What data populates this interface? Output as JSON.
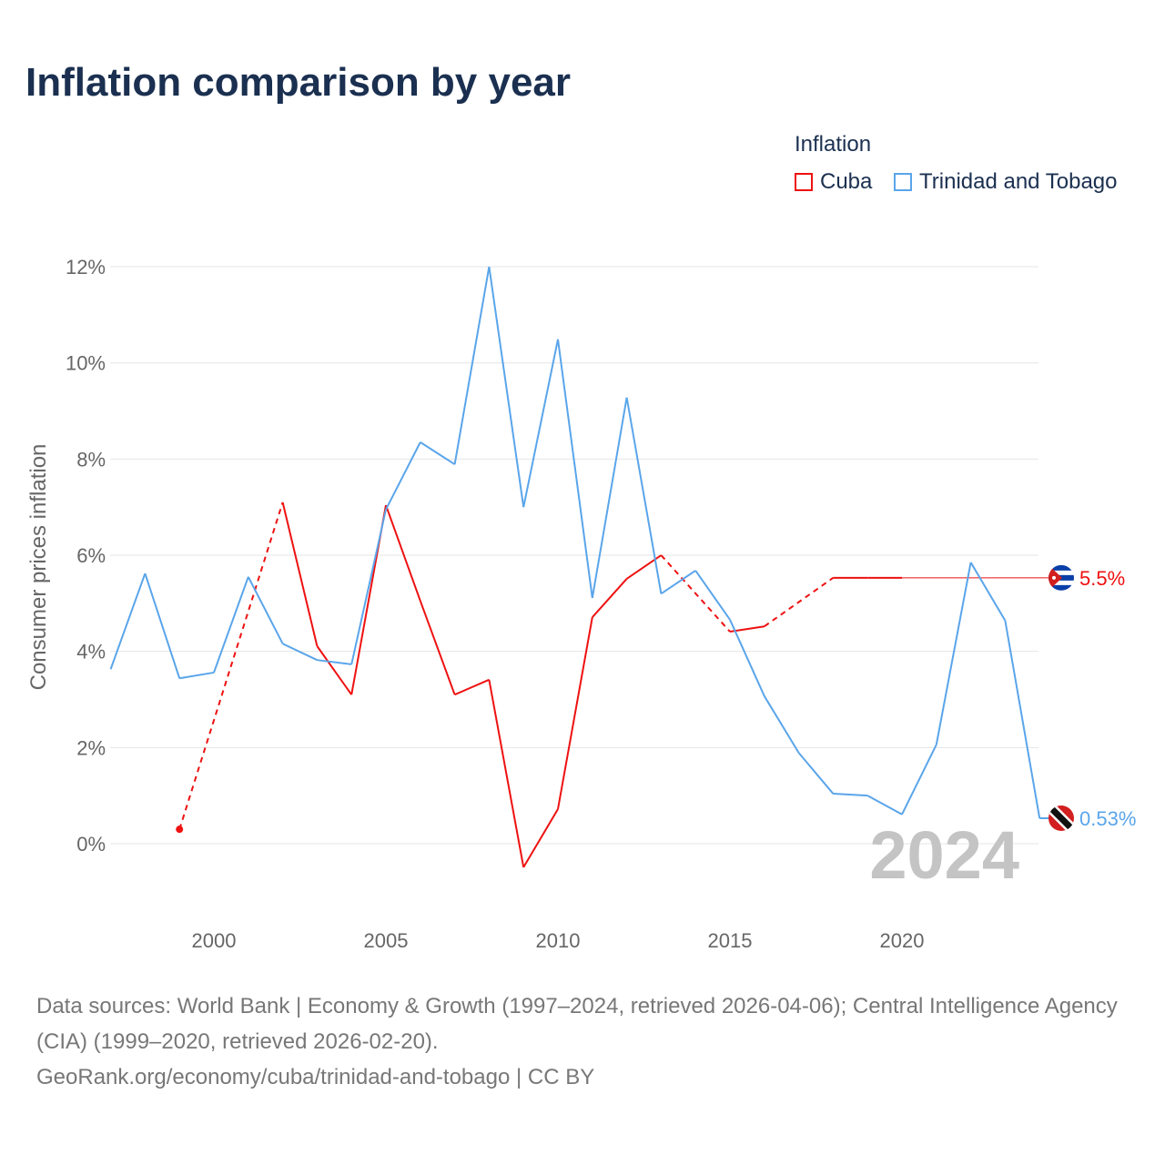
{
  "title": "Inflation comparison by year",
  "legend": {
    "title": "Inflation",
    "items": [
      {
        "label": "Cuba",
        "color": "#ee1111"
      },
      {
        "label": "Trinidad and Tobago",
        "color": "#5aa5ea"
      }
    ]
  },
  "year_watermark": "2024",
  "footer": {
    "line1": "Data sources: World Bank | Economy & Growth (1997–2024, retrieved 2026-04-06); Central Intelligence Agency (CIA) (1999–2020, retrieved 2026-02-20).",
    "line2": "GeoRank.org/economy/cuba/trinidad-and-tobago | CC BY"
  },
  "chart_data": {
    "type": "line",
    "title": "Inflation comparison by year",
    "xlabel": "",
    "ylabel": "Consumer prices inflation",
    "xlim": [
      1997,
      2024
    ],
    "ylim": [
      -1.3,
      12.3
    ],
    "yticks": [
      0,
      2,
      4,
      6,
      8,
      10,
      12
    ],
    "ytick_labels": [
      "0%",
      "2%",
      "4%",
      "6%",
      "8%",
      "10%",
      "12%"
    ],
    "xticks": [
      2000,
      2005,
      2010,
      2015,
      2020
    ],
    "xtick_labels": [
      "2000",
      "2005",
      "2010",
      "2015",
      "2020"
    ],
    "grid": true,
    "legend_position": "top-right",
    "x": [
      1997,
      1998,
      1999,
      2000,
      2001,
      2002,
      2003,
      2004,
      2005,
      2006,
      2007,
      2008,
      2009,
      2010,
      2011,
      2012,
      2013,
      2014,
      2015,
      2016,
      2017,
      2018,
      2019,
      2020,
      2021,
      2022,
      2023,
      2024
    ],
    "series": [
      {
        "name": "Cuba",
        "color": "#ee1111",
        "last_label": "5.5%",
        "values": [
          null,
          null,
          0.3,
          null,
          null,
          7.1,
          4.11,
          3.1,
          7.04,
          5.05,
          3.1,
          3.41,
          -0.49,
          0.72,
          4.71,
          5.51,
          6.0,
          null,
          4.41,
          4.52,
          null,
          5.53,
          5.53,
          5.53,
          null,
          null,
          null,
          null
        ]
      },
      {
        "name": "Trinidad and Tobago",
        "color": "#5aa5ea",
        "last_label": "0.53%",
        "values": [
          3.63,
          5.62,
          3.44,
          3.56,
          5.55,
          4.16,
          3.82,
          3.73,
          6.95,
          8.35,
          7.89,
          12.0,
          7.0,
          10.49,
          5.11,
          9.28,
          5.2,
          5.68,
          4.66,
          3.07,
          1.89,
          1.04,
          1.0,
          0.61,
          2.06,
          5.85,
          4.64,
          0.53
        ]
      }
    ]
  }
}
